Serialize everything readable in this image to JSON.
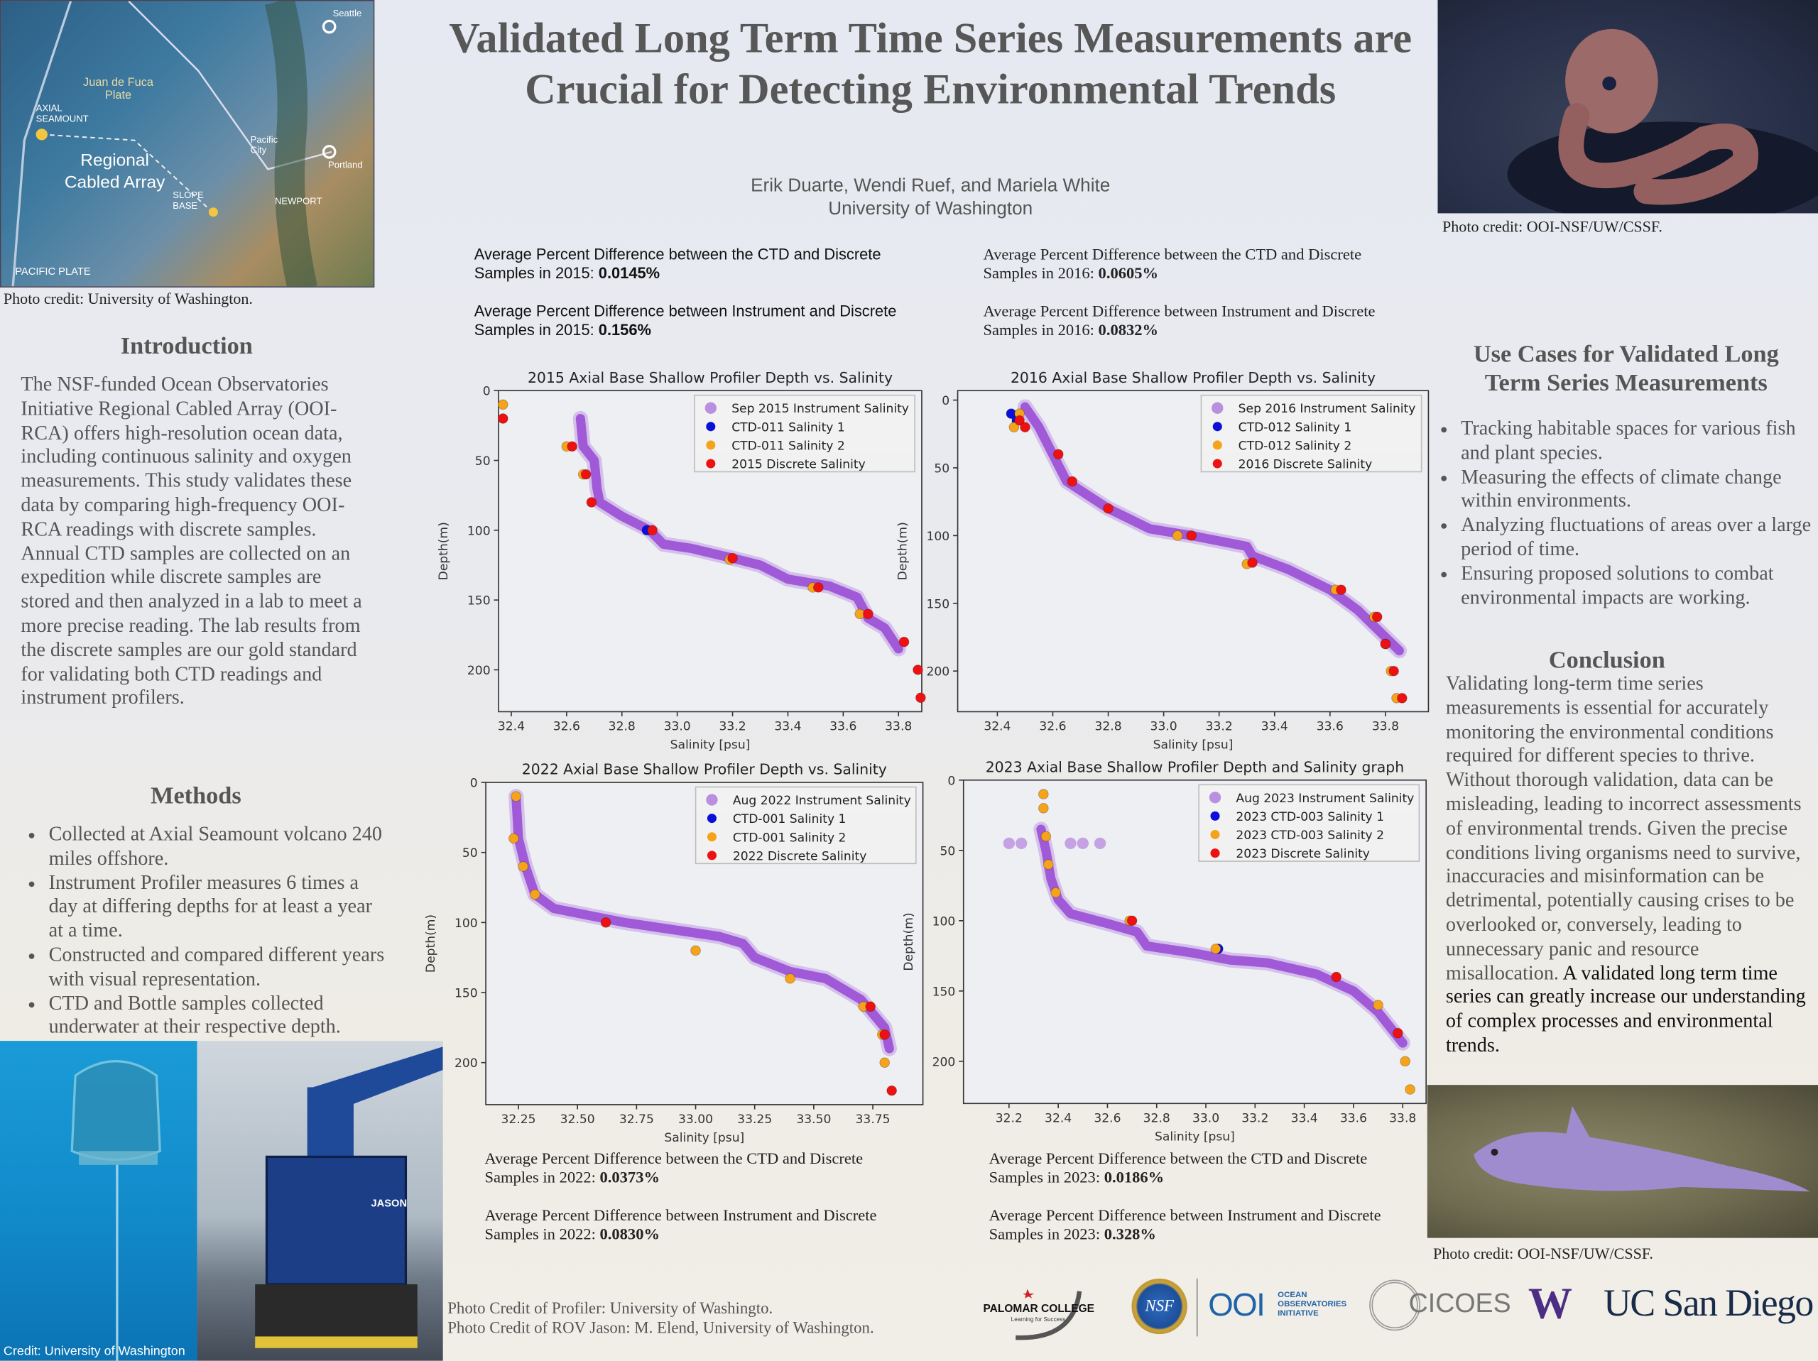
{
  "header": {
    "title": "Validated Long Term Time Series Measurements are Crucial for Detecting Environmental Trends",
    "authors": "Erik Duarte, Wendi Ruef, and Mariela White",
    "affiliation": "University of Washington"
  },
  "map": {
    "labels": [
      "Regional Cabled Array",
      "Juan de Fuca Plate",
      "Axial Seamount",
      "Pacific Plate",
      "Seattle",
      "Portland",
      "Newport",
      "Slope Base",
      "Pacific City"
    ],
    "credit": "Photo credit: University of Washington."
  },
  "octopus": {
    "credit": "Photo credit: OOI-NSF/UW/CSSF."
  },
  "fish": {
    "credit": "Photo credit: OOI-NSF/UW/CSSF."
  },
  "introduction": {
    "heading": "Introduction",
    "text": "The NSF-funded Ocean Observatories Initiative Regional Cabled Array (OOI-RCA) offers high-resolution ocean data, including continuous salinity and oxygen measurements. This study validates these data by comparing high-frequency OOI-RCA readings with discrete samples. Annual CTD samples are collected on an expedition while discrete samples are stored and then analyzed in a lab to meet a more precise reading. The lab results from the discrete samples are our gold standard for validating both CTD readings and instrument profilers."
  },
  "methods": {
    "heading": "Methods",
    "items": [
      "Collected at Axial Seamount volcano 240 miles offshore.",
      "Instrument Profiler measures 6 times a day at differing depths for at least a year at a time.",
      "Constructed and compared different years with visual representation.",
      "CTD and Bottle samples collected underwater at their respective depth."
    ]
  },
  "photos": {
    "profiler_credit_overlay": "Credit: University of Washington",
    "rov_label": "JASON",
    "credit_line1": "Photo Credit of Profiler: University of Washingto.",
    "credit_line2": "Photo Credit of ROV Jason: M. Elend, University of Washington."
  },
  "stats": {
    "s2015_ctd_prefix": "Average Percent Difference between the CTD and Discrete Samples in 2015: ",
    "s2015_ctd_value": "0.0145%",
    "s2015_inst_prefix": "Average Percent Difference between Instrument and Discrete Samples in 2015: ",
    "s2015_inst_value": "0.156%",
    "s2016_ctd_prefix": "Average Percent Difference between the CTD and Discrete Samples in 2016: ",
    "s2016_ctd_value": "0.0605%",
    "s2016_inst_prefix": "Average Percent Difference between Instrument and Discrete Samples in 2016: ",
    "s2016_inst_value": "0.0832%",
    "s2022_ctd_prefix": "Average Percent Difference between the CTD and Discrete Samples in 2022: ",
    "s2022_ctd_value": "0.0373%",
    "s2022_inst_prefix": "Average Percent Difference between Instrument and Discrete Samples in 2022: ",
    "s2022_inst_value": "0.0830%",
    "s2023_ctd_prefix": "Average Percent Difference between the CTD and Discrete Samples in 2023: ",
    "s2023_ctd_value": "0.0186%",
    "s2023_inst_prefix": "Average Percent Difference between Instrument and Discrete Samples in 2023: ",
    "s2023_inst_value": "0.328%"
  },
  "use_cases": {
    "heading": "Use Cases for Validated Long Term Series Measurements",
    "items": [
      "Tracking habitable spaces for various fish and plant species.",
      "Measuring the effects of climate change within environments.",
      "Analyzing fluctuations of areas over a large period of time.",
      "Ensuring proposed solutions to combat environmental impacts are working."
    ]
  },
  "conclusion": {
    "heading": "Conclusion",
    "text": "Validating long-term time series measurements is essential for accurately monitoring the environmental conditions required for different species to thrive. Without thorough validation, data can be misleading, leading to incorrect assessments of environmental trends. Given the precise conditions living organisms need to survive, inaccuracies and misinformation can be detrimental, potentially causing crises to be overlooked or, conversely, leading to unnecessary panic and resource misallocation.",
    "emphasis": "A validated long term time series can greatly increase our understanding of complex processes and environmental trends."
  },
  "logos": {
    "palomar": "PALOMAR COLLEGE",
    "palomar_tag": "Learning for Success",
    "nsf": "NSF",
    "ooi": "OOI",
    "ooi_text1": "OCEAN",
    "ooi_text2": "OBSERVATORIES",
    "ooi_text3": "INITIATIVE",
    "cicoes": "CICOES",
    "uw": "W",
    "ucsd": "UC San Diego"
  },
  "colors": {
    "instrument": "#9a4fd6",
    "ctd1": "#0a10d8",
    "ctd2": "#f5a31a",
    "discrete": "#ee1111"
  },
  "chart_data": [
    {
      "type": "scatter",
      "title": "2015 Axial Base Shallow Profiler Depth vs. Salinity",
      "xlabel": "Salinity [psu]",
      "ylabel": "Depth(m)",
      "xlim": [
        32.354,
        33.884
      ],
      "ylim": [
        230,
        0
      ],
      "xticks": [
        32.4,
        32.6,
        32.8,
        33.0,
        33.2,
        33.4,
        33.6,
        33.8
      ],
      "xtick_labels": [
        "32.4",
        "32.6",
        "32.8",
        "33.0",
        "33.2",
        "33.4",
        "33.6",
        "33.8"
      ],
      "yticks": [
        0,
        50,
        100,
        150,
        200
      ],
      "legend": "top-right",
      "series": [
        {
          "name": "Sep 2015 Instrument Salinity",
          "kind": "instrument",
          "points": [
            [
              32.65,
              20
            ],
            [
              32.66,
              40
            ],
            [
              32.7,
              50
            ],
            [
              32.71,
              70
            ],
            [
              32.72,
              80
            ],
            [
              32.8,
              90
            ],
            [
              32.9,
              100
            ],
            [
              32.95,
              110
            ],
            [
              33.05,
              113
            ],
            [
              33.2,
              120
            ],
            [
              33.3,
              125
            ],
            [
              33.4,
              135
            ],
            [
              33.55,
              140
            ],
            [
              33.65,
              148
            ],
            [
              33.69,
              163
            ],
            [
              33.75,
              170
            ],
            [
              33.8,
              185
            ]
          ]
        },
        {
          "name": "CTD-011 Salinity 1",
          "kind": "ctd1",
          "points": [
            [
              32.89,
              100
            ]
          ]
        },
        {
          "name": "CTD-011 Salinity 2",
          "kind": "ctd2",
          "points": [
            [
              32.37,
              10
            ],
            [
              32.6,
              40
            ],
            [
              32.66,
              60
            ],
            [
              33.19,
              121
            ],
            [
              33.49,
              141
            ],
            [
              33.66,
              160
            ]
          ]
        },
        {
          "name": "2015 Discrete Salinity",
          "kind": "discrete",
          "points": [
            [
              32.37,
              20
            ],
            [
              32.62,
              40
            ],
            [
              32.67,
              60
            ],
            [
              32.69,
              80
            ],
            [
              32.91,
              100
            ],
            [
              33.2,
              120
            ],
            [
              33.51,
              141
            ],
            [
              33.69,
              160
            ],
            [
              33.82,
              180
            ],
            [
              33.87,
              200
            ],
            [
              33.88,
              220
            ]
          ]
        }
      ]
    },
    {
      "type": "scatter",
      "title": "2016 Axial Base Shallow Profiler Depth vs. Salinity",
      "xlabel": "Salinity [psu]",
      "ylabel": "Depth(m)",
      "xlim": [
        32.257,
        33.955
      ],
      "ylim": [
        230,
        -7
      ],
      "xticks": [
        32.4,
        32.6,
        32.8,
        33.0,
        33.2,
        33.4,
        33.6,
        33.8
      ],
      "xtick_labels": [
        "32.4",
        "32.6",
        "32.8",
        "33.0",
        "33.2",
        "33.4",
        "33.6",
        "33.8"
      ],
      "yticks": [
        0,
        50,
        100,
        150,
        200
      ],
      "legend": "top-right",
      "series": [
        {
          "name": "Sep 2016 Instrument Salinity",
          "kind": "instrument",
          "points": [
            [
              32.5,
              5
            ],
            [
              32.55,
              20
            ],
            [
              32.6,
              40
            ],
            [
              32.65,
              60
            ],
            [
              32.8,
              80
            ],
            [
              32.95,
              95
            ],
            [
              33.1,
              100
            ],
            [
              33.3,
              108
            ],
            [
              33.32,
              115
            ],
            [
              33.45,
              125
            ],
            [
              33.6,
              140
            ],
            [
              33.7,
              155
            ],
            [
              33.8,
              175
            ],
            [
              33.85,
              185
            ]
          ]
        },
        {
          "name": "CTD-012 Salinity 1",
          "kind": "ctd1",
          "points": [
            [
              32.45,
              10
            ],
            [
              32.47,
              15
            ],
            [
              33.8,
              180
            ]
          ]
        },
        {
          "name": "CTD-012 Salinity 2",
          "kind": "ctd2",
          "points": [
            [
              32.48,
              10
            ],
            [
              32.46,
              20
            ],
            [
              33.05,
              100
            ],
            [
              33.3,
              121
            ],
            [
              33.62,
              140
            ],
            [
              33.76,
              160
            ],
            [
              33.82,
              200
            ],
            [
              33.84,
              220
            ]
          ]
        },
        {
          "name": "2016 Discrete Salinity",
          "kind": "discrete",
          "points": [
            [
              32.48,
              15
            ],
            [
              32.5,
              20
            ],
            [
              32.62,
              40
            ],
            [
              32.67,
              60
            ],
            [
              32.8,
              80
            ],
            [
              33.1,
              100
            ],
            [
              33.32,
              120
            ],
            [
              33.64,
              140
            ],
            [
              33.77,
              160
            ],
            [
              33.8,
              180
            ],
            [
              33.83,
              200
            ],
            [
              33.86,
              220
            ]
          ]
        }
      ]
    },
    {
      "type": "scatter",
      "title": "2022 Axial Base Shallow Profiler Depth vs. Salinity",
      "xlabel": "Salinity [psu]",
      "ylabel": "Depth(m)",
      "xlim": [
        32.112,
        33.962
      ],
      "ylim": [
        230,
        0
      ],
      "xticks": [
        32.25,
        32.5,
        32.75,
        33.0,
        33.25,
        33.5,
        33.75
      ],
      "xtick_labels": [
        "32.25",
        "32.50",
        "32.75",
        "33.00",
        "33.25",
        "33.50",
        "33.75"
      ],
      "yticks": [
        0,
        50,
        100,
        150,
        200
      ],
      "legend": "top-right",
      "series": [
        {
          "name": "Aug 2022 Instrument Salinity",
          "kind": "instrument",
          "points": [
            [
              32.24,
              10
            ],
            [
              32.25,
              40
            ],
            [
              32.28,
              60
            ],
            [
              32.32,
              80
            ],
            [
              32.4,
              90
            ],
            [
              32.55,
              95
            ],
            [
              32.7,
              100
            ],
            [
              32.9,
              105
            ],
            [
              33.1,
              110
            ],
            [
              33.2,
              115
            ],
            [
              33.25,
              125
            ],
            [
              33.4,
              135
            ],
            [
              33.55,
              140
            ],
            [
              33.7,
              155
            ],
            [
              33.8,
              175
            ],
            [
              33.82,
              190
            ]
          ]
        },
        {
          "name": "CTD-001 Salinity 1",
          "kind": "ctd1",
          "points": []
        },
        {
          "name": "CTD-001 Salinity 2",
          "kind": "ctd2",
          "points": [
            [
              32.24,
              10
            ],
            [
              32.23,
              40
            ],
            [
              32.27,
              60
            ],
            [
              32.32,
              80
            ],
            [
              33.0,
              120
            ],
            [
              33.4,
              140
            ],
            [
              33.71,
              160
            ],
            [
              33.79,
              180
            ],
            [
              33.8,
              200
            ]
          ]
        },
        {
          "name": "2022 Discrete Salinity",
          "kind": "discrete",
          "points": [
            [
              32.62,
              100
            ],
            [
              33.74,
              160
            ],
            [
              33.8,
              180
            ],
            [
              33.83,
              220
            ]
          ]
        }
      ]
    },
    {
      "type": "scatter",
      "title": "2023 Axial Base Shallow Profiler Depth and Salinity graph",
      "xlabel": "Salinity [psu]",
      "ylabel": "Depth(m)",
      "xlim": [
        32.015,
        33.895
      ],
      "ylim": [
        230,
        0
      ],
      "xticks": [
        32.2,
        32.4,
        32.6,
        32.8,
        33.0,
        33.2,
        33.4,
        33.6,
        33.8
      ],
      "xtick_labels": [
        "32.2",
        "32.4",
        "32.6",
        "32.8",
        "33.0",
        "33.2",
        "33.4",
        "33.6",
        "33.8"
      ],
      "yticks": [
        0,
        50,
        100,
        150,
        200
      ],
      "legend": "top-right",
      "series": [
        {
          "name": "Aug 2023 Instrument Salinity",
          "kind": "instrument",
          "points": [
            [
              32.33,
              35
            ],
            [
              32.35,
              50
            ],
            [
              32.37,
              70
            ],
            [
              32.4,
              85
            ],
            [
              32.45,
              95
            ],
            [
              32.6,
              102
            ],
            [
              32.72,
              108
            ],
            [
              32.76,
              118
            ],
            [
              32.95,
              123
            ],
            [
              33.1,
              128
            ],
            [
              33.25,
              130
            ],
            [
              33.45,
              138
            ],
            [
              33.6,
              150
            ],
            [
              33.7,
              165
            ],
            [
              33.8,
              187
            ]
          ],
          "outliers": [
            [
              32.2,
              45
            ],
            [
              32.25,
              45
            ],
            [
              32.45,
              45
            ],
            [
              32.5,
              45
            ],
            [
              32.57,
              45
            ]
          ]
        },
        {
          "name": "2023 CTD-003 Salinity 1",
          "kind": "ctd1",
          "points": [
            [
              33.05,
              120
            ]
          ]
        },
        {
          "name": "2023 CTD-003 Salinity 2",
          "kind": "ctd2",
          "points": [
            [
              32.34,
              10
            ],
            [
              32.34,
              20
            ],
            [
              32.35,
              40
            ],
            [
              32.36,
              60
            ],
            [
              32.39,
              80
            ],
            [
              32.69,
              100
            ],
            [
              33.04,
              120
            ],
            [
              33.7,
              160
            ],
            [
              33.81,
              200
            ],
            [
              33.83,
              220
            ]
          ]
        },
        {
          "name": "2023 Discrete Salinity",
          "kind": "discrete",
          "points": [
            [
              32.7,
              100
            ],
            [
              33.53,
              140
            ],
            [
              33.78,
              180
            ]
          ]
        }
      ]
    }
  ]
}
